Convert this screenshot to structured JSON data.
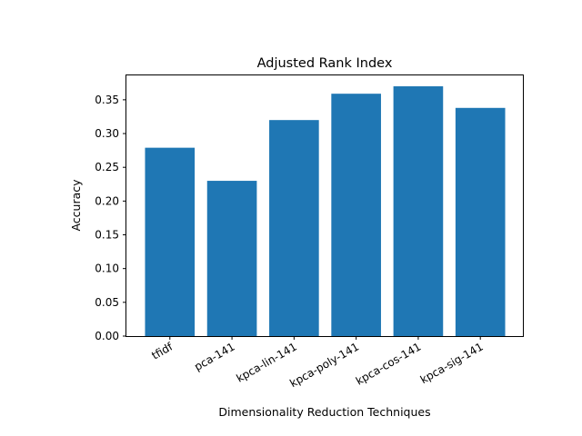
{
  "chart_data": {
    "type": "bar",
    "title": "Adjusted Rank Index",
    "xlabel": "Dimensionality Reduction Techniques",
    "ylabel": "Accuracy",
    "categories": [
      "tfidf",
      "pca-141",
      "kpca-lin-141",
      "kpca-poly-141",
      "kpca-cos-141",
      "kpca-sig-141"
    ],
    "values": [
      0.279,
      0.23,
      0.32,
      0.359,
      0.37,
      0.338
    ],
    "ylim": [
      0,
      0.3875
    ],
    "yticks": [
      0.0,
      0.05,
      0.1,
      0.15,
      0.2,
      0.25,
      0.3,
      0.35
    ],
    "ytick_labels": [
      "0.00",
      "0.05",
      "0.10",
      "0.15",
      "0.20",
      "0.25",
      "0.30",
      "0.35"
    ],
    "bar_color": "#1f77b4",
    "grid": false,
    "legend": "none"
  }
}
